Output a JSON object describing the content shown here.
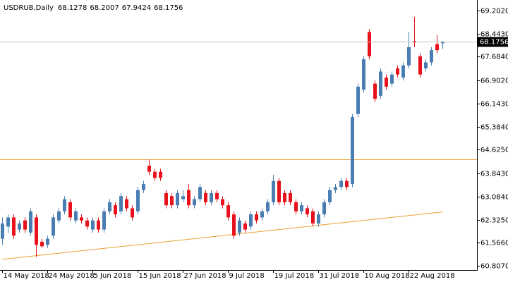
{
  "chart_data": {
    "type": "candlestick",
    "title": "USDRUB,Daily",
    "categories": [
      "14 May 2018",
      null,
      null,
      null,
      null,
      null,
      null,
      null,
      "24 May 2018",
      null,
      null,
      null,
      null,
      null,
      null,
      null,
      "5 Jun 2018",
      null,
      null,
      null,
      null,
      null,
      null,
      null,
      "15 Jun 2018",
      null,
      null,
      null,
      null,
      null,
      null,
      null,
      "27 Jun 2018",
      null,
      null,
      null,
      null,
      null,
      null,
      null,
      "9 Jul 2018",
      null,
      null,
      null,
      null,
      null,
      null,
      null,
      "19 Jul 2018",
      null,
      null,
      null,
      null,
      null,
      null,
      null,
      "31 Jul 2018",
      null,
      null,
      null,
      null,
      null,
      null,
      null,
      "10 Aug 2018",
      null,
      null,
      null,
      null,
      null,
      null,
      null,
      "22 Aug 2018",
      null,
      null,
      null,
      null,
      null,
      null
    ],
    "open": [
      61.7,
      62.1,
      62.4,
      62.0,
      62.3,
      61.9,
      62.4,
      61.6,
      61.5,
      61.8,
      62.3,
      62.6,
      62.9,
      62.3,
      62.4,
      62.3,
      62.0,
      62.3,
      62.0,
      62.6,
      62.8,
      62.6,
      63.0,
      62.7,
      62.6,
      63.3,
      64.1,
      63.9,
      63.9,
      63.2,
      63.1,
      62.8,
      63.0,
      63.3,
      62.8,
      63.0,
      63.2,
      62.9,
      63.2,
      63.0,
      62.8,
      62.5,
      61.9,
      62.2,
      62.1,
      62.5,
      62.4,
      62.6,
      62.9,
      63.6,
      63.2,
      63.2,
      62.9,
      62.6,
      62.7,
      62.6,
      62.2,
      62.5,
      62.9,
      63.3,
      63.4,
      63.6,
      63.5,
      65.8,
      66.6,
      68.5,
      66.8,
      66.4,
      67.0,
      66.8,
      67.3,
      67.0,
      67.4,
      68.2,
      67.7,
      67.3,
      67.5,
      68.1,
      68.1278
    ],
    "high": [
      62.4,
      62.5,
      62.5,
      62.3,
      62.4,
      62.7,
      62.5,
      61.7,
      61.8,
      62.5,
      62.7,
      63.1,
      63.0,
      62.7,
      62.5,
      62.4,
      62.4,
      62.4,
      62.7,
      63.0,
      62.9,
      63.2,
      63.1,
      62.8,
      63.4,
      63.6,
      64.3,
      64.0,
      64.0,
      63.3,
      63.2,
      63.3,
      63.3,
      63.5,
      63.1,
      63.5,
      63.3,
      63.3,
      63.3,
      63.1,
      62.9,
      62.6,
      62.4,
      62.3,
      62.6,
      62.6,
      62.7,
      63.0,
      63.8,
      63.7,
      63.3,
      63.3,
      63.0,
      62.9,
      62.8,
      62.7,
      62.6,
      63.0,
      63.4,
      63.5,
      63.7,
      63.7,
      65.8,
      66.8,
      67.7,
      68.6,
      66.9,
      67.3,
      67.1,
      67.2,
      67.4,
      67.5,
      68.5,
      69.0,
      67.8,
      67.6,
      68.0,
      68.4,
      68.2007
    ],
    "low": [
      61.5,
      61.9,
      61.7,
      61.9,
      61.9,
      61.8,
      61.1,
      61.4,
      61.4,
      61.7,
      62.2,
      62.5,
      62.3,
      62.2,
      62.2,
      62.0,
      61.9,
      61.9,
      61.9,
      62.5,
      62.4,
      62.5,
      62.6,
      62.3,
      62.5,
      63.2,
      63.8,
      63.6,
      63.6,
      62.7,
      62.7,
      62.7,
      62.9,
      62.7,
      62.7,
      62.9,
      62.8,
      62.8,
      62.9,
      62.7,
      62.3,
      61.7,
      61.8,
      61.9,
      62.0,
      62.2,
      62.3,
      62.5,
      62.8,
      62.8,
      62.8,
      62.8,
      62.5,
      62.5,
      62.4,
      62.1,
      62.1,
      62.4,
      62.8,
      63.2,
      63.3,
      63.3,
      63.4,
      65.7,
      66.5,
      67.6,
      66.2,
      66.3,
      66.6,
      66.7,
      67.0,
      66.9,
      67.3,
      68.0,
      67.0,
      67.2,
      67.4,
      67.8,
      67.9424
    ],
    "close": [
      62.2,
      62.4,
      61.8,
      62.2,
      62.0,
      62.6,
      61.5,
      61.45,
      61.7,
      62.4,
      62.6,
      63.0,
      62.4,
      62.6,
      62.3,
      62.1,
      62.3,
      62.0,
      62.6,
      62.9,
      62.5,
      63.1,
      62.7,
      62.4,
      63.3,
      63.5,
      63.9,
      63.7,
      63.7,
      62.8,
      62.8,
      63.2,
      63.1,
      62.8,
      63.0,
      63.4,
      62.9,
      63.2,
      63.0,
      62.8,
      62.4,
      61.8,
      62.3,
      62.0,
      62.5,
      62.3,
      62.6,
      62.9,
      63.6,
      62.9,
      62.9,
      62.9,
      62.6,
      62.8,
      62.5,
      62.2,
      62.5,
      62.9,
      63.3,
      63.4,
      63.6,
      63.4,
      65.7,
      66.7,
      67.6,
      67.7,
      66.3,
      67.2,
      66.7,
      67.1,
      67.1,
      67.4,
      68.0,
      68.15,
      67.1,
      67.5,
      67.9,
      67.9,
      68.1756
    ],
    "up_color": "#4a7eb3",
    "down_color": "#e8121c",
    "hline_color": "#c0c0c0",
    "levels": [
      {
        "value": 64.306,
        "color": "#f0a040"
      }
    ],
    "trendline": {
      "values": [
        61.02,
        62.58
      ],
      "color": "#e8a030"
    },
    "ylim": [
      60.67,
      69.55
    ],
    "yticks": [
      {
        "value": 69.202,
        "label": "69.2020"
      },
      {
        "value": 68.443,
        "label": "68.4430"
      },
      {
        "value": 67.684,
        "label": "67.6840"
      },
      {
        "value": 66.902,
        "label": "66.9020"
      },
      {
        "value": 66.143,
        "label": "66.1430"
      },
      {
        "value": 65.384,
        "label": "65.3840"
      },
      {
        "value": 64.625,
        "label": "64.6250"
      },
      {
        "value": 63.843,
        "label": "63.8430"
      },
      {
        "value": 63.084,
        "label": "63.0840"
      },
      {
        "value": 62.325,
        "label": "62.3250"
      },
      {
        "value": 61.566,
        "label": "61.5660"
      },
      {
        "value": 60.807,
        "label": "60.8070"
      }
    ]
  }
}
